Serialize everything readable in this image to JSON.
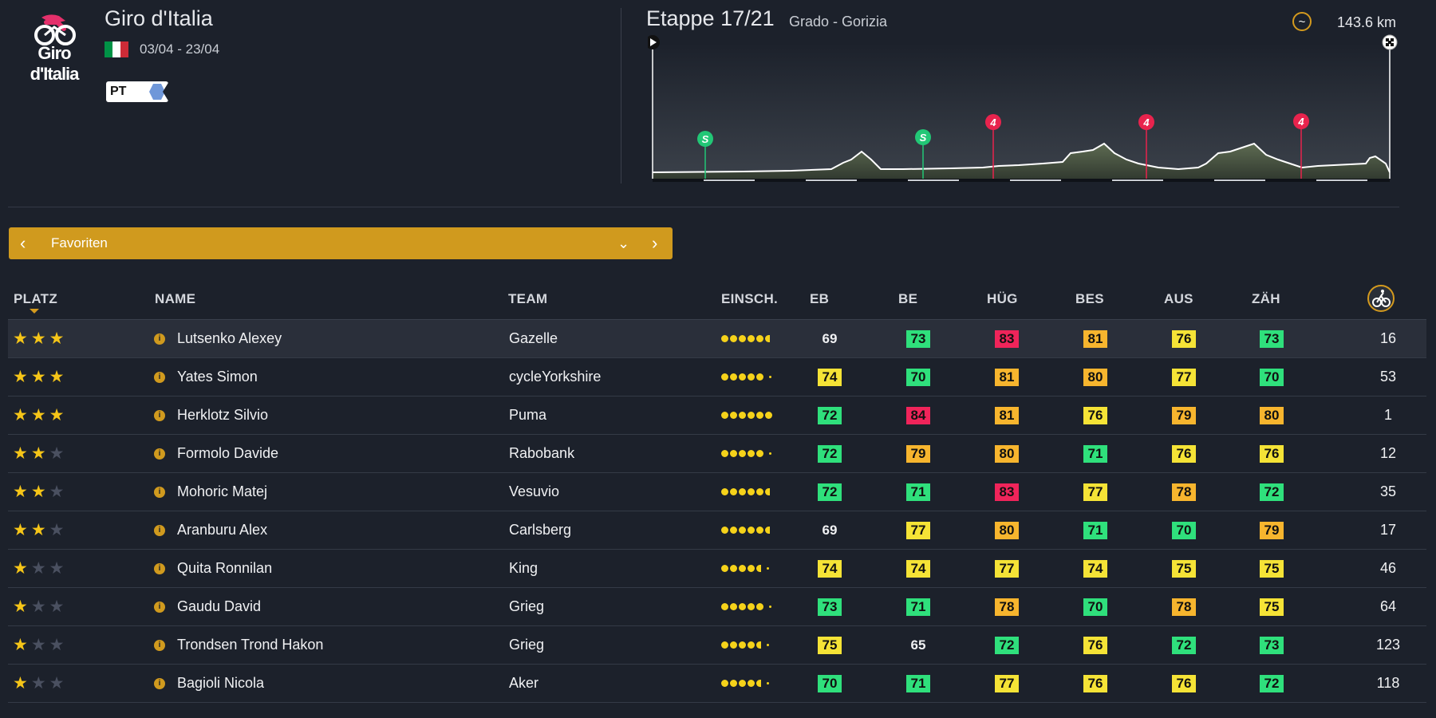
{
  "race": {
    "logo_text": "Giro d'Italia",
    "title": "Giro d'Italia",
    "dates": "03/04 - 23/04",
    "flag_colors": [
      "#009246",
      "#ffffff",
      "#ce2b37"
    ],
    "tour_badge": "PT",
    "accent": "#e4306b"
  },
  "stage": {
    "title": "Etappe 17/21",
    "route": "Grado - Gorizia",
    "terrain_icon": "hills-icon",
    "distance": "143.6 km",
    "markers": [
      {
        "type": "sprint",
        "label": "S"
      },
      {
        "type": "sprint",
        "label": "S"
      },
      {
        "type": "climb",
        "label": "4"
      },
      {
        "type": "climb",
        "label": "4"
      },
      {
        "type": "climb",
        "label": "4"
      }
    ]
  },
  "selector": {
    "label": "Favoriten",
    "prev_icon": "chevron-left-icon",
    "next_icon": "chevron-right-icon",
    "dropdown_icon": "chevron-down-icon"
  },
  "table": {
    "columns": {
      "rank": "PLATZ",
      "name": "NAME",
      "team": "TEAM",
      "form": "EINSCH.",
      "eb": "EB",
      "be": "BE",
      "hug": "HÜG",
      "bes": "BES",
      "aus": "AUS",
      "zah": "ZÄH",
      "last_icon": "cyclist-icon"
    },
    "rows": [
      {
        "stars": 3,
        "name": "Lutsenko Alexey",
        "team": "Gazelle",
        "form": 6,
        "eb": "69",
        "be": "73",
        "hug": "83",
        "bes": "81",
        "aus": "76",
        "zah": "73",
        "last": "16"
      },
      {
        "stars": 3,
        "name": "Yates Simon",
        "team": "cycleYorkshire",
        "form": 5,
        "eb": "74",
        "be": "70",
        "hug": "81",
        "bes": "80",
        "aus": "77",
        "zah": "70",
        "last": "53"
      },
      {
        "stars": 3,
        "name": "Herklotz Silvio",
        "team": "Puma",
        "form": 6,
        "eb": "72",
        "be": "84",
        "hug": "81",
        "bes": "76",
        "aus": "79",
        "zah": "80",
        "last": "1"
      },
      {
        "stars": 2,
        "name": "Formolo Davide",
        "team": "Rabobank",
        "form": 5,
        "eb": "72",
        "be": "79",
        "hug": "80",
        "bes": "71",
        "aus": "76",
        "zah": "76",
        "last": "12"
      },
      {
        "stars": 2,
        "name": "Mohoric Matej",
        "team": "Vesuvio",
        "form": 6,
        "eb": "72",
        "be": "71",
        "hug": "83",
        "bes": "77",
        "aus": "78",
        "zah": "72",
        "last": "35"
      },
      {
        "stars": 2,
        "name": "Aranburu Alex",
        "team": "Carlsberg",
        "form": 6,
        "eb": "69",
        "be": "77",
        "hug": "80",
        "bes": "71",
        "aus": "70",
        "zah": "79",
        "last": "17"
      },
      {
        "stars": 1,
        "name": "Quita Ronnilan",
        "team": "King",
        "form": 4,
        "eb": "74",
        "be": "74",
        "hug": "77",
        "bes": "74",
        "aus": "75",
        "zah": "75",
        "last": "46"
      },
      {
        "stars": 1,
        "name": "Gaudu David",
        "team": "Grieg",
        "form": 5,
        "eb": "73",
        "be": "71",
        "hug": "78",
        "bes": "70",
        "aus": "78",
        "zah": "75",
        "last": "64"
      },
      {
        "stars": 1,
        "name": "Trondsen Trond Hakon",
        "team": "Grieg",
        "form": 4,
        "eb": "75",
        "be": "65",
        "hug": "72",
        "bes": "76",
        "aus": "72",
        "zah": "73",
        "last": "123"
      },
      {
        "stars": 1,
        "name": "Bagioli Nicola",
        "team": "Aker",
        "form": 4,
        "eb": "70",
        "be": "71",
        "hug": "77",
        "bes": "76",
        "aus": "76",
        "zah": "72",
        "last": "118"
      }
    ]
  },
  "colors": {
    "accent": "#d09a1e",
    "stat_green": "#2fe07c",
    "stat_yellow": "#f5e336",
    "stat_orange": "#f7b52e",
    "stat_red": "#f0245a",
    "star_on": "#f5c518",
    "star_off": "#4a5060"
  }
}
